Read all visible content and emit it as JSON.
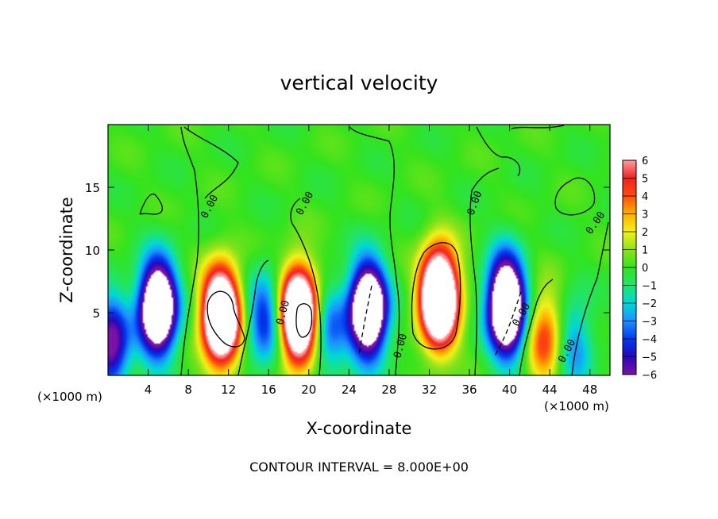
{
  "chart_data": {
    "type": "heatmap",
    "title": "vertical velocity",
    "xlabel": "X-coordinate",
    "ylabel": "Z-coordinate",
    "x_unit_left": "(×1000 m)",
    "x_unit_right": "(×1000 m)",
    "xlim": [
      0,
      50
    ],
    "ylim": [
      0,
      20
    ],
    "x_ticks": [
      4,
      8,
      12,
      16,
      20,
      24,
      28,
      32,
      36,
      40,
      44,
      48
    ],
    "y_ticks": [
      5,
      10,
      15
    ],
    "colorbar": {
      "min": -6,
      "max": 6,
      "ticks": [
        6,
        5,
        4,
        3,
        2,
        1,
        0,
        -1,
        -2,
        -3,
        -4,
        -5,
        -6
      ]
    },
    "contour_labels": [
      "0.00",
      "0.00",
      "0.00",
      "0.00",
      "0.00",
      "0.00",
      "0.00",
      "0.00"
    ],
    "footer": "CONTOUR INTERVAL = 8.000E+00",
    "features": [
      {
        "x": 4.8,
        "z": 5.4,
        "w": -5.5
      },
      {
        "x": 5.1,
        "z": 5.4,
        "w": -7.0
      },
      {
        "x": 0.3,
        "z": 2.5,
        "w": -6.5
      },
      {
        "x": 11.2,
        "z": 5.0,
        "w": 6.0
      },
      {
        "x": 11.3,
        "z": 4.5,
        "w": 8.0
      },
      {
        "x": 15.6,
        "z": 4.5,
        "w": -4.5
      },
      {
        "x": 19.0,
        "z": 4.8,
        "w": 6.0
      },
      {
        "x": 19.0,
        "z": 4.8,
        "w": 7.8
      },
      {
        "x": 22.0,
        "z": 3.5,
        "w": -3.5
      },
      {
        "x": 25.8,
        "z": 5.5,
        "w": -5.0
      },
      {
        "x": 26.0,
        "z": 5.0,
        "w": -7.5
      },
      {
        "x": 33.0,
        "z": 6.5,
        "w": 6.0
      },
      {
        "x": 33.0,
        "z": 6.0,
        "w": 9.0
      },
      {
        "x": 39.5,
        "z": 6.5,
        "w": -5.0
      },
      {
        "x": 39.8,
        "z": 5.0,
        "w": -8.5
      },
      {
        "x": 43.5,
        "z": 3.0,
        "w": 4.5
      },
      {
        "x": 46.5,
        "z": 2.5,
        "w": -3.0
      }
    ]
  }
}
